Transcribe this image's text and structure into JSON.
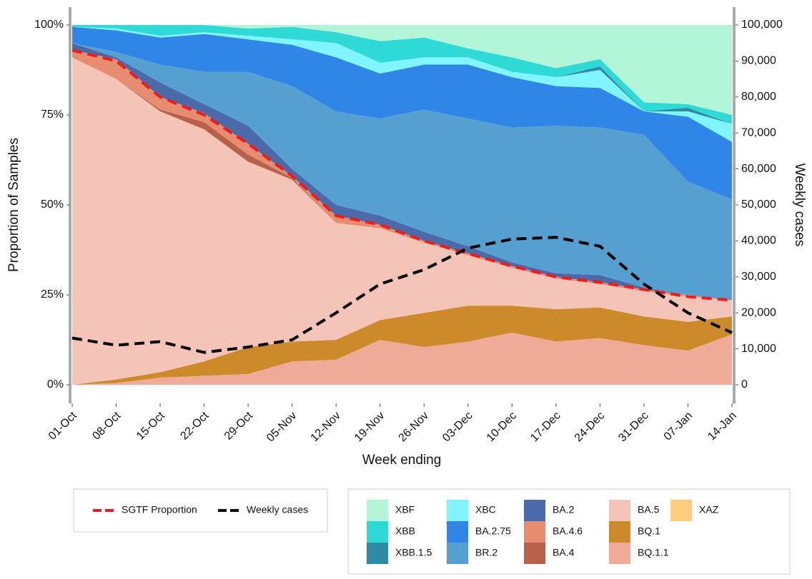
{
  "chart_data": {
    "type": "stacked-area",
    "x_label": "Week ending",
    "y_label": "Proportion of Samples",
    "y2_label": "Weekly cases",
    "categories": [
      "01-Oct",
      "08-Oct",
      "15-Oct",
      "22-Oct",
      "29-Oct",
      "05-Nov",
      "12-Nov",
      "19-Nov",
      "26-Nov",
      "03-Dec",
      "10-Dec",
      "17-Dec",
      "24-Dec",
      "31-Dec",
      "07-Jan",
      "14-Jan"
    ],
    "ylim": [
      0,
      100
    ],
    "yticks": [
      {
        "value": 0,
        "label": "0%"
      },
      {
        "value": 25,
        "label": "25%"
      },
      {
        "value": 50,
        "label": "50%"
      },
      {
        "value": 75,
        "label": "75%"
      },
      {
        "value": 100,
        "label": "100%"
      }
    ],
    "y2lim": [
      0,
      100000
    ],
    "y2ticks": [
      0,
      {
        "value": 10000,
        "label": "10,000"
      },
      {
        "value": 20000,
        "label": "20,000"
      },
      {
        "value": 30000,
        "label": "30,000"
      },
      {
        "value": 40000,
        "label": "40,000"
      },
      {
        "value": 50000,
        "label": "50,000"
      },
      {
        "value": 60000,
        "label": "60,000"
      },
      {
        "value": 70000,
        "label": "70,000"
      },
      {
        "value": 80000,
        "label": "80,000"
      },
      {
        "value": 90000,
        "label": "90,000"
      },
      {
        "value": 100000,
        "label": "100,000"
      }
    ],
    "series": [
      {
        "name": "XBF",
        "color": "#b3f5d8",
        "values": [
          0,
          0,
          0,
          0,
          1,
          0.5,
          2,
          4.5,
          3.5,
          6.5,
          9,
          12,
          9.5,
          21.5,
          22,
          25
        ]
      },
      {
        "name": "XBB",
        "color": "#2fd9d6",
        "values": [
          0.5,
          1,
          3,
          2,
          2,
          3.5,
          3,
          6,
          5.5,
          2.5,
          4,
          2.5,
          2,
          2.5,
          1,
          2.5
        ]
      },
      {
        "name": "XBB.1.5",
        "color": "#2e8ba6",
        "values": [
          0,
          0,
          0,
          0,
          0,
          0,
          0,
          0,
          0,
          0,
          0,
          0,
          1,
          0,
          1,
          0
        ]
      },
      {
        "name": "XBC",
        "color": "#80f5ff",
        "values": [
          0,
          0.5,
          0.5,
          0.5,
          1,
          1.5,
          4,
          3,
          2,
          2,
          1.5,
          2.5,
          5,
          0,
          1.5,
          5
        ]
      },
      {
        "name": "BA.2.75",
        "color": "#2f86e6",
        "values": [
          4.5,
          6,
          7.5,
          10.5,
          9,
          11.5,
          15,
          12.5,
          12.5,
          15,
          14,
          11,
          11,
          6.5,
          18,
          16
        ]
      },
      {
        "name": "BR.2",
        "color": "#569fd1",
        "values": [
          0,
          1.5,
          5,
          9,
          15,
          23,
          26,
          27,
          34,
          35.5,
          37.5,
          41,
          41,
          42.5,
          31.5,
          28
        ]
      },
      {
        "name": "BA.2",
        "color": "#4a6aaa",
        "values": [
          2,
          0.5,
          4,
          2.5,
          5,
          2,
          3,
          2.5,
          2.5,
          2,
          1,
          1,
          2,
          0.5,
          0,
          0
        ]
      },
      {
        "name": "BA.4.6",
        "color": "#e88c70",
        "values": [
          2,
          5.5,
          3.5,
          2.5,
          3,
          0.5,
          2,
          1,
          0.5,
          0.5,
          0.5,
          0.5,
          0.5,
          0.5,
          0.5,
          0
        ]
      },
      {
        "name": "BA.4",
        "color": "#b8614a",
        "values": [
          0,
          0,
          0.5,
          2,
          2,
          0.5,
          0,
          0,
          0,
          0,
          0,
          0,
          0,
          0,
          0,
          0
        ]
      },
      {
        "name": "BA.5",
        "color": "#f5c4b8",
        "values": [
          91,
          83.5,
          72.5,
          64.5,
          51.5,
          45,
          32.5,
          25.5,
          19.5,
          14,
          10.5,
          8.5,
          6.5,
          7,
          7,
          4.5
        ]
      },
      {
        "name": "BQ.1",
        "color": "#cc8a2a",
        "values": [
          0,
          1,
          1.5,
          4,
          7.5,
          5.5,
          5.5,
          5.5,
          9.5,
          10,
          7.5,
          9,
          8.5,
          8,
          8,
          5
        ]
      },
      {
        "name": "BQ.1.1",
        "color": "#f0ab98",
        "values": [
          0,
          0.5,
          2,
          2.5,
          3,
          6.5,
          7,
          12.5,
          10.5,
          12,
          14.5,
          12,
          13,
          11,
          9.5,
          14
        ]
      },
      {
        "name": "XAZ",
        "color": "#ffcc80",
        "values": [
          0,
          0,
          0,
          0,
          0,
          0,
          0,
          0,
          0,
          0,
          0,
          0,
          0,
          0,
          0,
          0
        ]
      }
    ],
    "lines": [
      {
        "name": "SGTF Proportion",
        "color": "#ee1c1c",
        "values": [
          93,
          90,
          80,
          75,
          67,
          58,
          47,
          44.5,
          40,
          36.5,
          33,
          30,
          28.5,
          26.5,
          24.5,
          23.5
        ]
      },
      {
        "name": "Weekly cases",
        "color": "#000000",
        "axis": "y2",
        "values": [
          13000,
          11000,
          12000,
          9000,
          10500,
          12500,
          20000,
          28000,
          32000,
          38000,
          40500,
          41000,
          38500,
          28000,
          20000,
          14500
        ]
      }
    ]
  }
}
